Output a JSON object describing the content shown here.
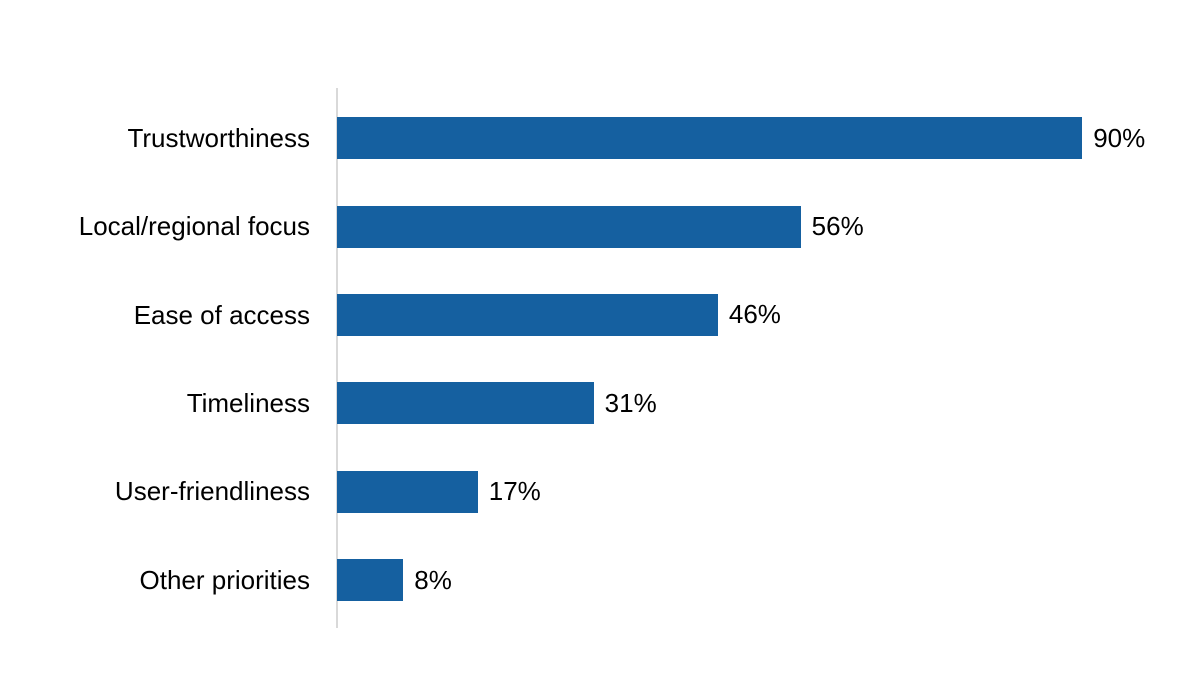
{
  "chart_data": {
    "type": "bar",
    "orientation": "horizontal",
    "title": "",
    "xlabel": "",
    "ylabel": "",
    "categories": [
      "Trustworthiness",
      "Local/regional focus",
      "Ease of access",
      "Timeliness",
      "User-friendliness",
      "Other priorities"
    ],
    "values": [
      90,
      56,
      46,
      31,
      17,
      8
    ],
    "value_labels": [
      "90%",
      "56%",
      "46%",
      "31%",
      "17%",
      "8%"
    ],
    "xlim": [
      0,
      100
    ],
    "grid": false,
    "legend": false,
    "colors": {
      "bar": "#1560A0",
      "axis_line": "#D9D9D9",
      "text": "#000000",
      "background": "#FFFFFF"
    }
  }
}
